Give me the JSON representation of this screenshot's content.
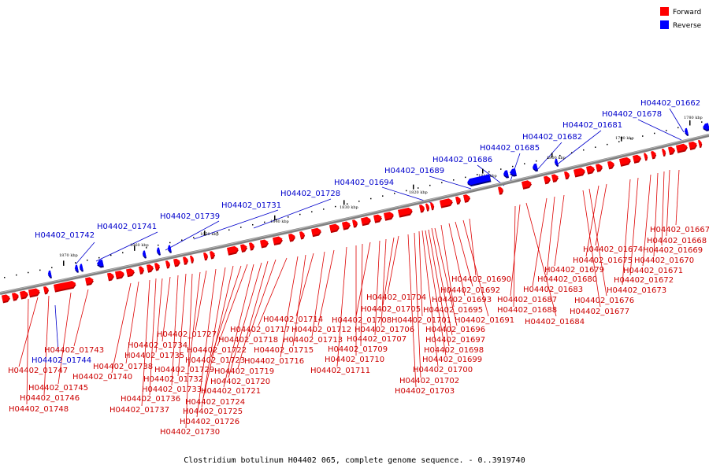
{
  "colors": {
    "forward": "#ff0000",
    "forward_shade": "#b40000",
    "reverse": "#0000ff",
    "forward_line": "#dd0000",
    "reverse_line": "#0000cc",
    "backbone": "#808080"
  },
  "legend": [
    {
      "label": "Forward",
      "strand": "forward"
    },
    {
      "label": "Reverse",
      "strand": "reverse"
    }
  ],
  "footer": "Clostridium botulinum H04402 065, complete genome sequence. - 0..3919740",
  "ticks": [
    "1780 kbp",
    "1790 kbp",
    "1800 kbp",
    "1810 kbp",
    "1820 kbp",
    "1830 kbp",
    "1840 kbp",
    "1850 kbp",
    "1860 kbp",
    "1870 kbp"
  ],
  "reverse_genes": [
    "H04402_01662",
    "H04402_01678",
    "H04402_01681",
    "H04402_01682",
    "H04402_01685",
    "H04402_01686",
    "H04402_01689",
    "H04402_01694",
    "H04402_01728",
    "H04402_01731",
    "H04402_01739",
    "H04402_01741",
    "H04402_01742",
    "H04402_01744"
  ],
  "forward_genes": [
    "H04402_01667",
    "H04402_01668",
    "H04402_01669",
    "H04402_01670",
    "H04402_01671",
    "H04402_01672",
    "H04402_01673",
    "H04402_01674",
    "H04402_01675",
    "H04402_01676",
    "H04402_01677",
    "H04402_01679",
    "H04402_01680",
    "H04402_01683",
    "H04402_01684",
    "H04402_01687",
    "H04402_01688",
    "H04402_01690",
    "H04402_01691",
    "H04402_01692",
    "H04402_01693",
    "H04402_01695",
    "H04402_01696",
    "H04402_01697",
    "H04402_01698",
    "H04402_01699",
    "H04402_01700",
    "H04402_01701",
    "H04402_01702",
    "H04402_01703",
    "H04402_01704",
    "H04402_01705",
    "H04402_01706",
    "H04402_01707",
    "H04402_01708",
    "H04402_01709",
    "H04402_01710",
    "H04402_01711",
    "H04402_01712",
    "H04402_01713",
    "H04402_01714",
    "H04402_01715",
    "H04402_01716",
    "H04402_01717",
    "H04402_01718",
    "H04402_01719",
    "H04402_01720",
    "H04402_01721",
    "H04402_01722",
    "H04402_01723",
    "H04402_01724",
    "H04402_01725",
    "H04402_01726",
    "H04402_01727",
    "H04402_01729",
    "H04402_01730",
    "H04402_01732",
    "H04402_01733",
    "H04402_01734",
    "H04402_01735",
    "H04402_01736",
    "H04402_01737",
    "H04402_01738",
    "H04402_01740",
    "H04402_01743",
    "H04402_01745",
    "H04402_01746",
    "H04402_01747",
    "H04402_01748"
  ]
}
